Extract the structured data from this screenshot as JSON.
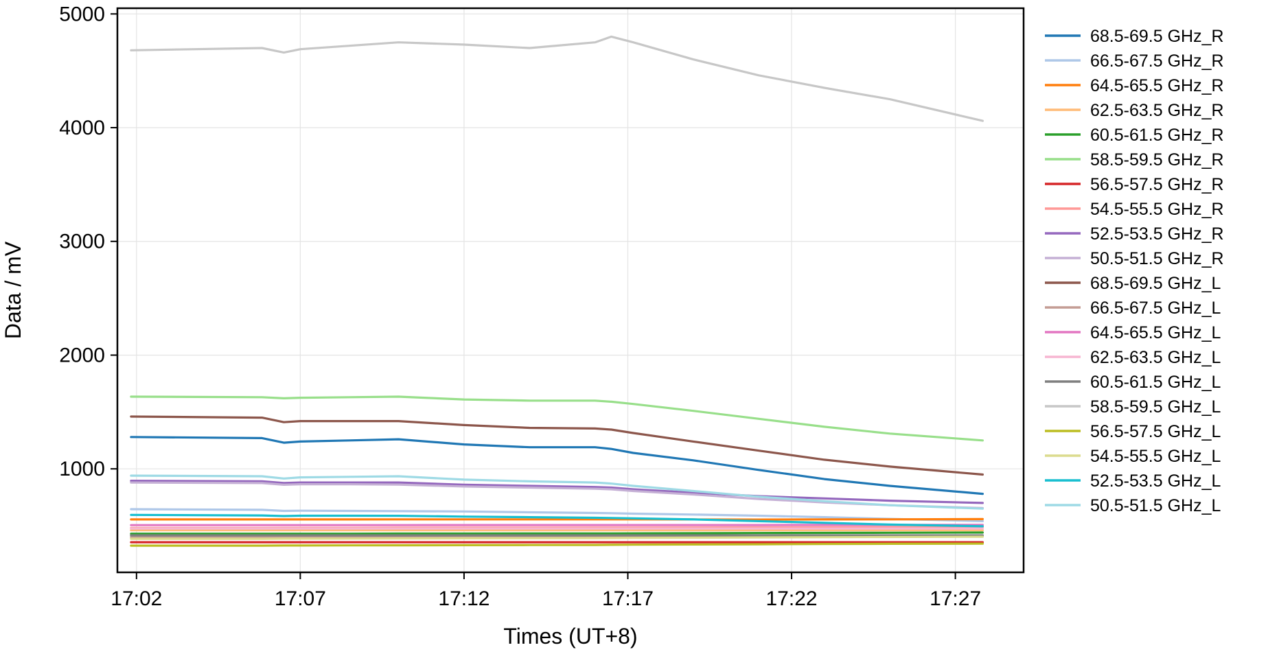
{
  "chart_data": {
    "type": "line",
    "xlabel": "Times (UT+8)",
    "ylabel": "Data / mV",
    "xlim": [
      "17:01:25",
      "17:29:05"
    ],
    "ylim": [
      90,
      5050
    ],
    "xticks": [
      "17:02",
      "17:07",
      "17:12",
      "17:17",
      "17:22",
      "17:27"
    ],
    "yticks": [
      1000,
      2000,
      3000,
      4000,
      5000
    ],
    "grid": true,
    "legend": "right, outside plot",
    "x": [
      "17:01:50",
      "17:05:50",
      "17:06:30",
      "17:07:00",
      "17:08:30",
      "17:10:00",
      "17:12:00",
      "17:14:00",
      "17:16:00",
      "17:16:30",
      "17:17:10",
      "17:19:00",
      "17:21:00",
      "17:23:00",
      "17:25:00",
      "17:27:50"
    ],
    "series": [
      {
        "name": "68.5-69.5 GHz_R",
        "color": "#1f77b4",
        "values": [
          1280,
          1270,
          1230,
          1240,
          1250,
          1260,
          1215,
          1190,
          1190,
          1175,
          1140,
          1075,
          990,
          910,
          850,
          780
        ]
      },
      {
        "name": "66.5-67.5 GHz_R",
        "color": "#aec7e8",
        "values": [
          645,
          640,
          630,
          632,
          630,
          628,
          625,
          618,
          612,
          610,
          606,
          598,
          588,
          575,
          560,
          540
        ]
      },
      {
        "name": "64.5-65.5 GHz_R",
        "color": "#ff7f0e",
        "values": [
          555,
          555,
          555,
          555,
          555,
          556,
          556,
          556,
          556,
          556,
          556,
          555,
          554,
          555,
          556,
          558
        ]
      },
      {
        "name": "62.5-63.5 GHz_R",
        "color": "#ffbb78",
        "values": [
          460,
          460,
          460,
          460,
          460,
          460,
          460,
          460,
          460,
          460,
          460,
          460,
          460,
          460,
          460,
          460
        ]
      },
      {
        "name": "60.5-61.5 GHz_R",
        "color": "#2ca02c",
        "values": [
          430,
          430,
          430,
          430,
          430,
          431,
          431,
          432,
          432,
          432,
          433,
          434,
          436,
          437,
          438,
          440
        ]
      },
      {
        "name": "58.5-59.5 GHz_R",
        "color": "#98df8a",
        "values": [
          1635,
          1630,
          1620,
          1625,
          1630,
          1635,
          1610,
          1600,
          1600,
          1590,
          1570,
          1510,
          1440,
          1370,
          1310,
          1250
        ]
      },
      {
        "name": "56.5-57.5 GHz_R",
        "color": "#d62728",
        "values": [
          355,
          355,
          355,
          355,
          355,
          355,
          355,
          355,
          355,
          355,
          355,
          355,
          355,
          355,
          355,
          355
        ]
      },
      {
        "name": "54.5-55.5 GHz_R",
        "color": "#ff9896",
        "values": [
          480,
          480,
          481,
          481,
          481,
          482,
          482,
          482,
          483,
          483,
          483,
          484,
          485,
          486,
          487,
          488
        ]
      },
      {
        "name": "52.5-53.5 GHz_R",
        "color": "#9467bd",
        "values": [
          895,
          890,
          875,
          880,
          880,
          880,
          860,
          850,
          840,
          835,
          820,
          790,
          760,
          740,
          720,
          700
        ]
      },
      {
        "name": "50.5-51.5 GHz_R",
        "color": "#c5b0d5",
        "values": [
          880,
          875,
          860,
          865,
          865,
          862,
          845,
          835,
          825,
          820,
          805,
          775,
          735,
          705,
          680,
          655
        ]
      },
      {
        "name": "68.5-69.5 GHz_L",
        "color": "#8c564b",
        "values": [
          1460,
          1450,
          1410,
          1420,
          1420,
          1420,
          1385,
          1360,
          1355,
          1345,
          1315,
          1240,
          1160,
          1080,
          1020,
          950
        ]
      },
      {
        "name": "66.5-67.5 GHz_L",
        "color": "#c49c94",
        "values": [
          400,
          400,
          400,
          400,
          400,
          401,
          401,
          401,
          401,
          401,
          402,
          402,
          403,
          404,
          405,
          406
        ]
      },
      {
        "name": "64.5-65.5 GHz_L",
        "color": "#e377c2",
        "values": [
          505,
          505,
          505,
          505,
          505,
          505,
          506,
          506,
          506,
          506,
          506,
          506,
          506,
          507,
          507,
          507
        ]
      },
      {
        "name": "62.5-63.5 GHz_L",
        "color": "#f7b6d2",
        "values": [
          475,
          475,
          475,
          475,
          475,
          475,
          475,
          475,
          475,
          475,
          475,
          475,
          475,
          475,
          475,
          475
        ]
      },
      {
        "name": "60.5-61.5 GHz_L",
        "color": "#7f7f7f",
        "values": [
          415,
          415,
          415,
          415,
          415,
          415,
          415,
          415,
          415,
          415,
          415,
          415,
          415,
          415,
          415,
          415
        ]
      },
      {
        "name": "58.5-59.5 GHz_L",
        "color": "#c7c7c7",
        "values": [
          4680,
          4700,
          4660,
          4690,
          4720,
          4750,
          4730,
          4700,
          4750,
          4800,
          4750,
          4600,
          4460,
          4350,
          4250,
          4060
        ]
      },
      {
        "name": "56.5-57.5 GHz_L",
        "color": "#bcbd22",
        "values": [
          325,
          325,
          326,
          326,
          327,
          328,
          329,
          330,
          331,
          332,
          333,
          335,
          337,
          339,
          341,
          342
        ]
      },
      {
        "name": "54.5-55.5 GHz_L",
        "color": "#dbdb8d",
        "values": [
          385,
          385,
          386,
          386,
          387,
          388,
          389,
          390,
          391,
          392,
          393,
          395,
          397,
          399,
          401,
          403
        ]
      },
      {
        "name": "52.5-53.5 GHz_L",
        "color": "#17becf",
        "values": [
          595,
          590,
          585,
          588,
          588,
          587,
          580,
          575,
          570,
          568,
          565,
          555,
          540,
          525,
          510,
          495
        ]
      },
      {
        "name": "50.5-51.5 GHz_L",
        "color": "#9edae5",
        "values": [
          940,
          935,
          915,
          925,
          930,
          935,
          905,
          890,
          880,
          870,
          850,
          805,
          755,
          715,
          680,
          650
        ]
      }
    ]
  }
}
